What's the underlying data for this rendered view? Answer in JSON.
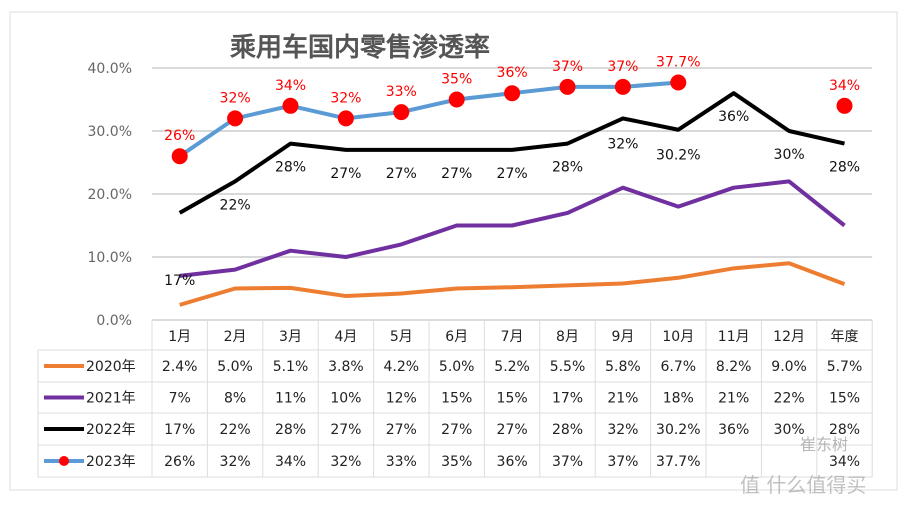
{
  "chart_data": {
    "type": "line",
    "title": "乘用车国内零售渗透率",
    "categories": [
      "1月",
      "2月",
      "3月",
      "4月",
      "5月",
      "6月",
      "7月",
      "8月",
      "9月",
      "10月",
      "11月",
      "12月",
      "年度"
    ],
    "ylim": [
      0,
      40
    ],
    "yticks": [
      "0.0%",
      "10.0%",
      "20.0%",
      "30.0%",
      "40.0%"
    ],
    "grid": true,
    "legend": "data-table-left",
    "series": [
      {
        "name": "2020年",
        "color": "#ed7d31",
        "values": [
          2.4,
          5.0,
          5.1,
          3.8,
          4.2,
          5.0,
          5.2,
          5.5,
          5.8,
          6.7,
          8.2,
          9.0,
          5.7
        ],
        "table": [
          "2.4%",
          "5.0%",
          "5.1%",
          "3.8%",
          "4.2%",
          "5.0%",
          "5.2%",
          "5.5%",
          "5.8%",
          "6.7%",
          "8.2%",
          "9.0%",
          "5.7%"
        ]
      },
      {
        "name": "2021年",
        "color": "#7030a0",
        "values": [
          7,
          8,
          11,
          10,
          12,
          15,
          15,
          17,
          21,
          18,
          21,
          22,
          15
        ],
        "table": [
          "7%",
          "8%",
          "11%",
          "10%",
          "12%",
          "15%",
          "15%",
          "17%",
          "21%",
          "18%",
          "21%",
          "22%",
          "15%"
        ]
      },
      {
        "name": "2022年",
        "color": "#000000",
        "values": [
          17,
          22,
          28,
          27,
          27,
          27,
          27,
          28,
          32,
          30.2,
          36,
          30,
          28
        ],
        "table": [
          "17%",
          "22%",
          "28%",
          "27%",
          "27%",
          "27%",
          "27%",
          "28%",
          "32%",
          "30.2%",
          "36%",
          "30%",
          "28%"
        ],
        "data_labels": [
          "17%",
          "22%",
          "28%",
          "27%",
          "27%",
          "27%",
          "27%",
          "28%",
          "32%",
          "30.2%",
          "36%",
          "30%",
          "28%"
        ]
      },
      {
        "name": "2023年",
        "color": "#5b9bd5",
        "marker_color": "#ff0000",
        "values": [
          26,
          32,
          34,
          32,
          33,
          35,
          36,
          37,
          37,
          37.7,
          null,
          null,
          34
        ],
        "table": [
          "26%",
          "32%",
          "34%",
          "32%",
          "33%",
          "35%",
          "36%",
          "37%",
          "37%",
          "37.7%",
          "",
          "",
          "34%"
        ],
        "data_labels": [
          "26%",
          "32%",
          "34%",
          "32%",
          "33%",
          "35%",
          "36%",
          "37%",
          "37%",
          "37.7%",
          "",
          "",
          "34%"
        ]
      }
    ]
  },
  "watermarks": {
    "author": "崔东树",
    "site": "值 什么值得买"
  }
}
